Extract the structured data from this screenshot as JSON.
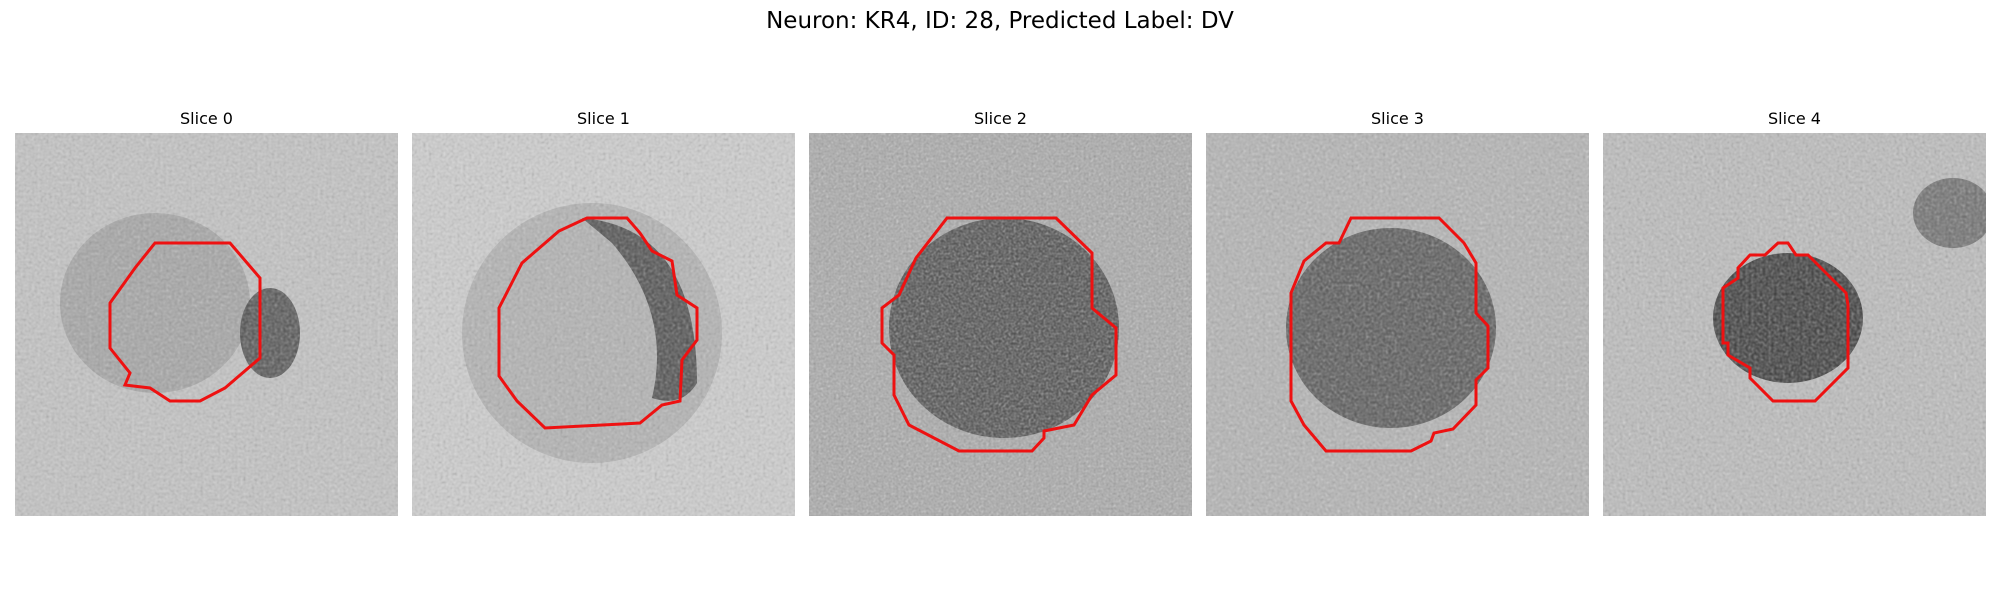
{
  "title": "Neuron: KR4, ID: 28, Predicted Label: DV",
  "colors": {
    "contour": "#ee1111"
  },
  "panels": [
    {
      "title": "Slice 0"
    },
    {
      "title": "Slice 1"
    },
    {
      "title": "Slice 2"
    },
    {
      "title": "Slice 3"
    },
    {
      "title": "Slice 4"
    }
  ]
}
